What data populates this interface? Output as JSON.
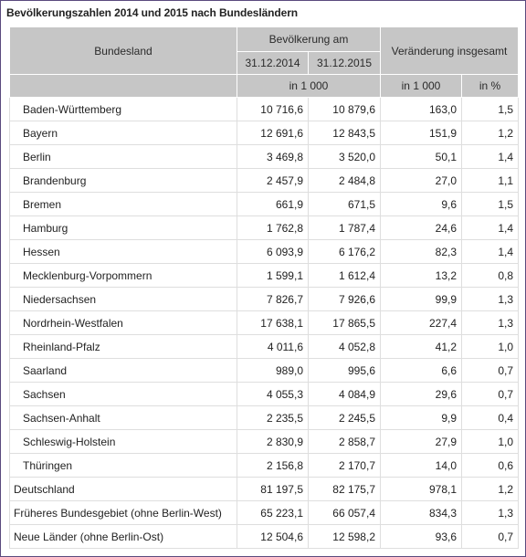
{
  "title": "Bevölkerungszahlen 2014 und 2015 nach Bundesländern",
  "header": {
    "col_state": "Bundesland",
    "col_population": "Bevölkerung am",
    "col_change": "Veränderung insgesamt",
    "date_2014": "31.12.2014",
    "date_2015": "31.12.2015",
    "unit_pop": "in 1 000",
    "unit_change_abs": "in 1 000",
    "unit_change_pct": "in %"
  },
  "rows": [
    {
      "name": "Baden-Württemberg",
      "pop2014": "10 716,6",
      "pop2015": "10 879,6",
      "change": "163,0",
      "pct": "1,5"
    },
    {
      "name": "Bayern",
      "pop2014": "12 691,6",
      "pop2015": "12 843,5",
      "change": "151,9",
      "pct": "1,2"
    },
    {
      "name": "Berlin",
      "pop2014": "3 469,8",
      "pop2015": "3 520,0",
      "change": "50,1",
      "pct": "1,4"
    },
    {
      "name": "Brandenburg",
      "pop2014": "2 457,9",
      "pop2015": "2 484,8",
      "change": "27,0",
      "pct": "1,1"
    },
    {
      "name": "Bremen",
      "pop2014": "661,9",
      "pop2015": "671,5",
      "change": "9,6",
      "pct": "1,5"
    },
    {
      "name": "Hamburg",
      "pop2014": "1 762,8",
      "pop2015": "1 787,4",
      "change": "24,6",
      "pct": "1,4"
    },
    {
      "name": "Hessen",
      "pop2014": "6 093,9",
      "pop2015": "6 176,2",
      "change": "82,3",
      "pct": "1,4"
    },
    {
      "name": "Mecklenburg-Vorpommern",
      "pop2014": "1 599,1",
      "pop2015": "1 612,4",
      "change": "13,2",
      "pct": "0,8"
    },
    {
      "name": "Niedersachsen",
      "pop2014": "7 826,7",
      "pop2015": "7 926,6",
      "change": "99,9",
      "pct": "1,3"
    },
    {
      "name": "Nordrhein-Westfalen",
      "pop2014": "17 638,1",
      "pop2015": "17 865,5",
      "change": "227,4",
      "pct": "1,3"
    },
    {
      "name": "Rheinland-Pfalz",
      "pop2014": "4 011,6",
      "pop2015": "4 052,8",
      "change": "41,2",
      "pct": "1,0"
    },
    {
      "name": "Saarland",
      "pop2014": "989,0",
      "pop2015": "995,6",
      "change": "6,6",
      "pct": "0,7"
    },
    {
      "name": "Sachsen",
      "pop2014": "4 055,3",
      "pop2015": "4 084,9",
      "change": "29,6",
      "pct": "0,7"
    },
    {
      "name": "Sachsen-Anhalt",
      "pop2014": "2 235,5",
      "pop2015": "2 245,5",
      "change": "9,9",
      "pct": "0,4"
    },
    {
      "name": "Schleswig-Holstein",
      "pop2014": "2 830,9",
      "pop2015": "2 858,7",
      "change": "27,9",
      "pct": "1,0"
    },
    {
      "name": "Thüringen",
      "pop2014": "2 156,8",
      "pop2015": "2 170,7",
      "change": "14,0",
      "pct": "0,6"
    }
  ],
  "totals": [
    {
      "name": "Deutschland",
      "pop2014": "81 197,5",
      "pop2015": "82 175,7",
      "change": "978,1",
      "pct": "1,2"
    },
    {
      "name": "Früheres Bundesgebiet (ohne Berlin-West)",
      "pop2014": "65 223,1",
      "pop2015": "66 057,4",
      "change": "834,3",
      "pct": "1,3"
    },
    {
      "name": "Neue Länder (ohne Berlin-Ost)",
      "pop2014": "12 504,6",
      "pop2015": "12 598,2",
      "change": "93,6",
      "pct": "0,7"
    }
  ],
  "colors": {
    "header_bg": "#c6c6c6",
    "border": "#dedede",
    "frame": "#5a4a7e"
  }
}
